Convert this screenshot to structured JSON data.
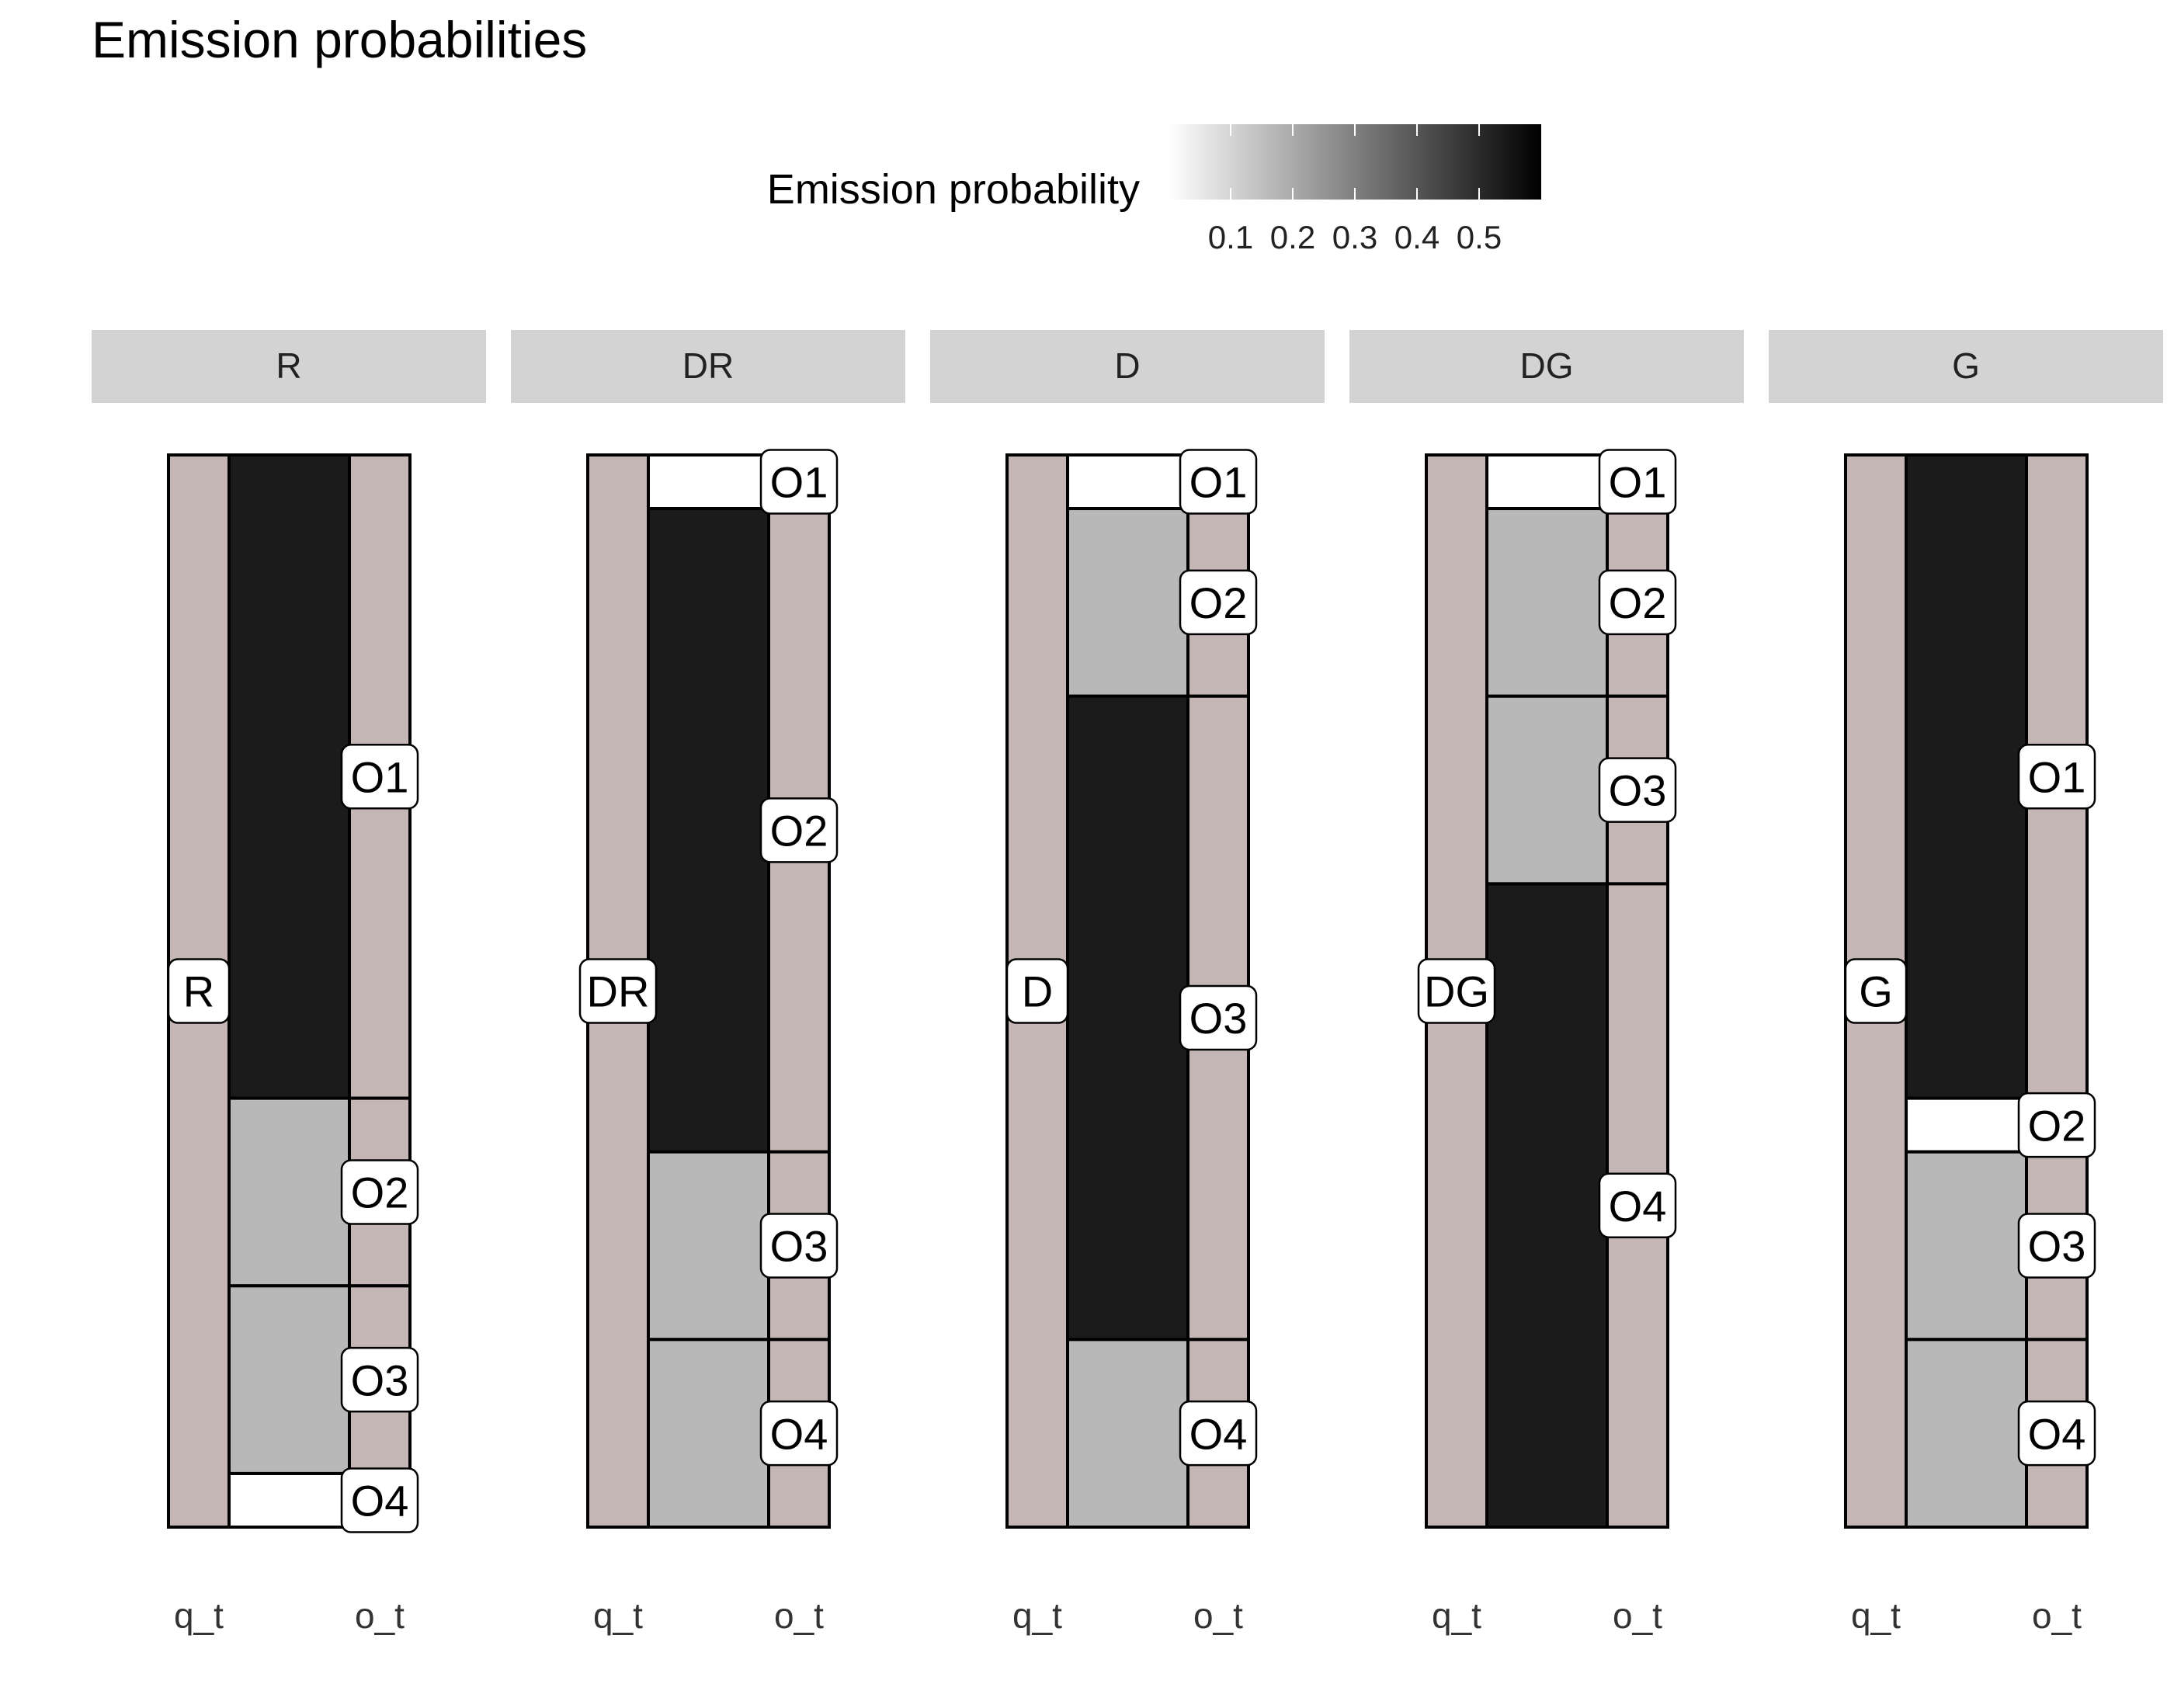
{
  "chart_data": {
    "type": "alluvial",
    "title": "Emission probabilities",
    "legend": {
      "title": "Emission probability",
      "placement": "top",
      "ticks": [
        "0.1",
        "0.2",
        "0.3",
        "0.4",
        "0.5"
      ],
      "tick_values": [
        0.1,
        0.2,
        0.3,
        0.4,
        0.5
      ],
      "range": [
        0,
        0.6
      ],
      "colors": {
        "low": "#ffffff",
        "high": "#000000"
      }
    },
    "axis_labels": [
      "q_t",
      "o_t"
    ],
    "outcomes": [
      "O1",
      "O2",
      "O3",
      "O4"
    ],
    "panels": [
      {
        "state": "R",
        "probs": {
          "O1": 0.6,
          "O2": 0.175,
          "O3": 0.175,
          "O4": 0.05
        }
      },
      {
        "state": "DR",
        "probs": {
          "O1": 0.05,
          "O2": 0.6,
          "O3": 0.175,
          "O4": 0.175
        }
      },
      {
        "state": "D",
        "probs": {
          "O1": 0.05,
          "O2": 0.175,
          "O3": 0.6,
          "O4": 0.175
        }
      },
      {
        "state": "DG",
        "probs": {
          "O1": 0.05,
          "O2": 0.175,
          "O3": 0.175,
          "O4": 0.6
        }
      },
      {
        "state": "G",
        "probs": {
          "O1": 0.6,
          "O2": 0.05,
          "O3": 0.175,
          "O4": 0.175
        }
      }
    ],
    "colors": {
      "stratum_fill": "#c4b6b4",
      "strip_fill": "#d3d3d3",
      "border": "#000000",
      "label_bg": "#ffffff",
      "flow_dark": "#1b1b1b",
      "flow_mid": "#b8b8b8",
      "flow_light": "#ffffff"
    }
  }
}
